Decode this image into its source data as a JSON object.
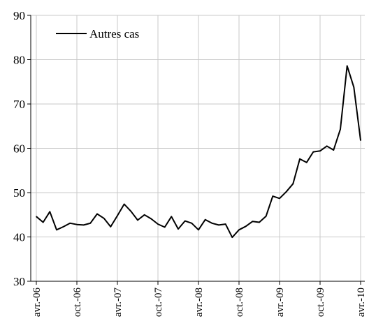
{
  "chart_data": {
    "type": "line",
    "title": "",
    "xlabel": "",
    "ylabel": "",
    "ylim": [
      30,
      90
    ],
    "yticks": [
      30,
      40,
      50,
      60,
      70,
      80,
      90
    ],
    "grid": true,
    "legend_position": "top-left",
    "x_tick_labels": [
      "avr.-06",
      "oct.-06",
      "avr.-07",
      "oct.-07",
      "avr.-08",
      "oct.-08",
      "avr.-09",
      "oct.-09",
      "avr.-10"
    ],
    "x": [
      "2006-04",
      "2006-05",
      "2006-06",
      "2006-07",
      "2006-08",
      "2006-09",
      "2006-10",
      "2006-11",
      "2006-12",
      "2007-01",
      "2007-02",
      "2007-03",
      "2007-04",
      "2007-05",
      "2007-06",
      "2007-07",
      "2007-08",
      "2007-09",
      "2007-10",
      "2007-11",
      "2007-12",
      "2008-01",
      "2008-02",
      "2008-03",
      "2008-04",
      "2008-05",
      "2008-06",
      "2008-07",
      "2008-08",
      "2008-09",
      "2008-10",
      "2008-11",
      "2008-12",
      "2009-01",
      "2009-02",
      "2009-03",
      "2009-04",
      "2009-05",
      "2009-06",
      "2009-07",
      "2009-08",
      "2009-09",
      "2009-10",
      "2009-11",
      "2009-12",
      "2010-01",
      "2010-02",
      "2010-03",
      "2010-04"
    ],
    "series": [
      {
        "name": "Autres cas",
        "color": "#000000",
        "values": [
          44.6,
          43.3,
          45.7,
          41.6,
          42.3,
          43.1,
          42.8,
          42.7,
          43.1,
          45.2,
          44.2,
          42.3,
          44.8,
          47.4,
          45.8,
          43.8,
          45.0,
          44.1,
          42.9,
          42.2,
          44.6,
          41.8,
          43.6,
          43.1,
          41.6,
          43.9,
          43.1,
          42.7,
          42.9,
          39.9,
          41.6,
          42.4,
          43.5,
          43.3,
          44.7,
          49.2,
          48.7,
          50.2,
          52.0,
          57.6,
          56.8,
          59.2,
          59.4,
          60.5,
          59.6,
          64.3,
          78.6,
          73.8,
          61.8
        ]
      }
    ]
  }
}
